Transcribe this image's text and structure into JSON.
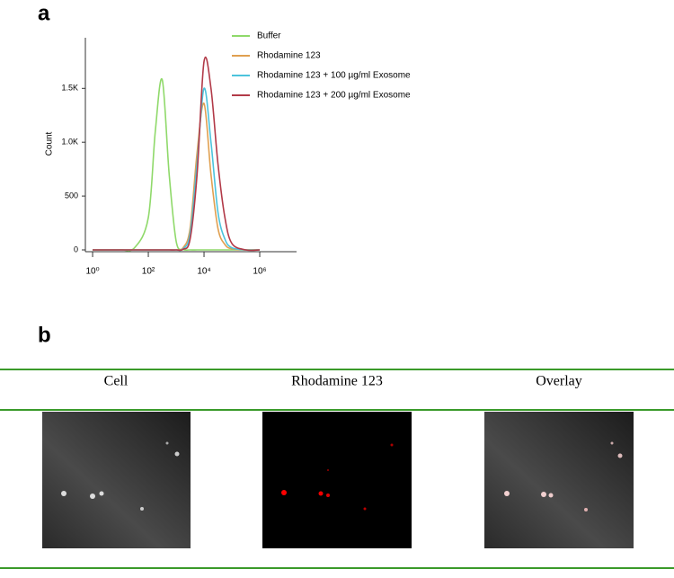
{
  "panel_labels": [
    "a",
    "b"
  ],
  "chart_data": {
    "type": "line",
    "y_label": "Count",
    "xscale": "log",
    "x": [
      1,
      3,
      10,
      32,
      100,
      178,
      316,
      562,
      1000,
      1778,
      3162,
      5623,
      10000,
      17783,
      31623,
      56234,
      100000,
      316228,
      1000000
    ],
    "series": [
      {
        "name": "Buffer",
        "color": "#8fd96a",
        "values": [
          0,
          0,
          2,
          20,
          300,
          1100,
          1580,
          700,
          80,
          5,
          0,
          0,
          0,
          0,
          0,
          0,
          0,
          0,
          0
        ]
      },
      {
        "name": "Rhodamine 123",
        "color": "#e0a050",
        "values": [
          0,
          0,
          0,
          0,
          0,
          0,
          0,
          0,
          0,
          20,
          200,
          900,
          1360,
          700,
          200,
          50,
          10,
          0,
          0
        ]
      },
      {
        "name": "Rhodamine 123 + 100 µg/ml Exosome",
        "color": "#4cc3dc",
        "values": [
          0,
          0,
          0,
          0,
          0,
          0,
          0,
          0,
          0,
          10,
          150,
          800,
          1500,
          1000,
          350,
          100,
          20,
          0,
          0
        ]
      },
      {
        "name": "Rhodamine 123 + 200 µg/ml Exosome",
        "color": "#b23a48",
        "values": [
          0,
          0,
          0,
          0,
          0,
          0,
          0,
          0,
          0,
          5,
          100,
          700,
          1750,
          1500,
          800,
          300,
          60,
          0,
          0
        ]
      }
    ],
    "xlim": [
      0.55,
      21000000
    ],
    "xticks": [
      {
        "value": 1,
        "label": "10⁰"
      },
      {
        "value": 100,
        "label": "10²"
      },
      {
        "value": 10000,
        "label": "10⁴"
      },
      {
        "value": 1000000,
        "label": "10⁶"
      }
    ],
    "ylim": [
      0,
      1970
    ],
    "yticks": [
      0,
      500,
      {
        "value": 1000,
        "label": "1.0K"
      },
      {
        "value": 1500,
        "label": "1.5K"
      }
    ],
    "grid": false
  },
  "images": {
    "columns": [
      "Cell",
      "Rhodamine 123",
      "Overlay"
    ]
  }
}
